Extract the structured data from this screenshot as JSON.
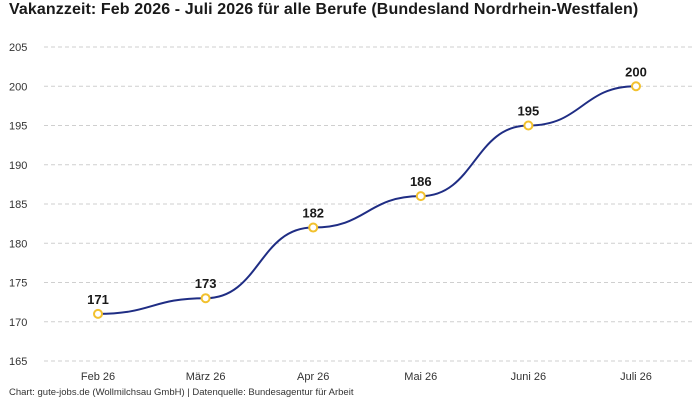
{
  "chart_data": {
    "type": "line",
    "title": "Vakanzzeit: Feb 2026 - Juli 2026 für alle Berufe (Bundesland Nordrhein-Westfalen)",
    "categories": [
      "Feb 26",
      "März 26",
      "Apr 26",
      "Mai 26",
      "Juni 26",
      "Juli 26"
    ],
    "series": [
      {
        "values": [
          171,
          173,
          182,
          186,
          195,
          200
        ]
      }
    ],
    "ylim": [
      165,
      205
    ],
    "yticks": [
      165,
      170,
      175,
      180,
      185,
      190,
      195,
      200,
      205
    ],
    "grid": true,
    "data_labels": true,
    "colors": {
      "line": "#1f2d84",
      "marker": "#f2c12e",
      "grid": "#cfcfcf"
    }
  },
  "footer": "Chart: gute-jobs.de (Wollmilchsau GmbH) | Datenquelle: Bundesagentur für Arbeit"
}
